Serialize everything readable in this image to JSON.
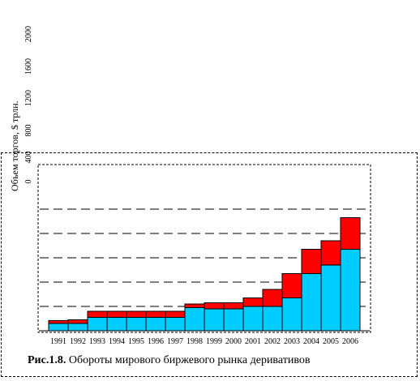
{
  "caption": {
    "label": "Рис.1.8.",
    "text": " Обороты мирового биржевого рынка деривативов"
  },
  "chart_data": {
    "type": "bar",
    "stacked": true,
    "categories": [
      "1991",
      "1992",
      "1993",
      "1994",
      "1995",
      "1996",
      "1997",
      "1998",
      "1999",
      "2000",
      "2001",
      "2002",
      "2003",
      "2004",
      "2005",
      "2006"
    ],
    "series": [
      {
        "name": "",
        "color": "#00ccff",
        "values": [
          30,
          30,
          55,
          55,
          55,
          55,
          55,
          95,
          90,
          90,
          100,
          100,
          135,
          235,
          270,
          335
        ]
      },
      {
        "name": "",
        "color": "#ff0000",
        "values": [
          12,
          15,
          25,
          25,
          25,
          25,
          25,
          15,
          25,
          25,
          35,
          70,
          100,
          100,
          100,
          130
        ]
      }
    ],
    "ylabel": "Объем торгов, $ трлн.",
    "yticks": [
      0,
      400,
      800,
      1200,
      1600,
      2000
    ],
    "ylim": [
      0,
      600
    ],
    "grid_y": [
      100,
      200,
      300,
      400,
      500
    ],
    "grid": "dashed horizontal"
  }
}
